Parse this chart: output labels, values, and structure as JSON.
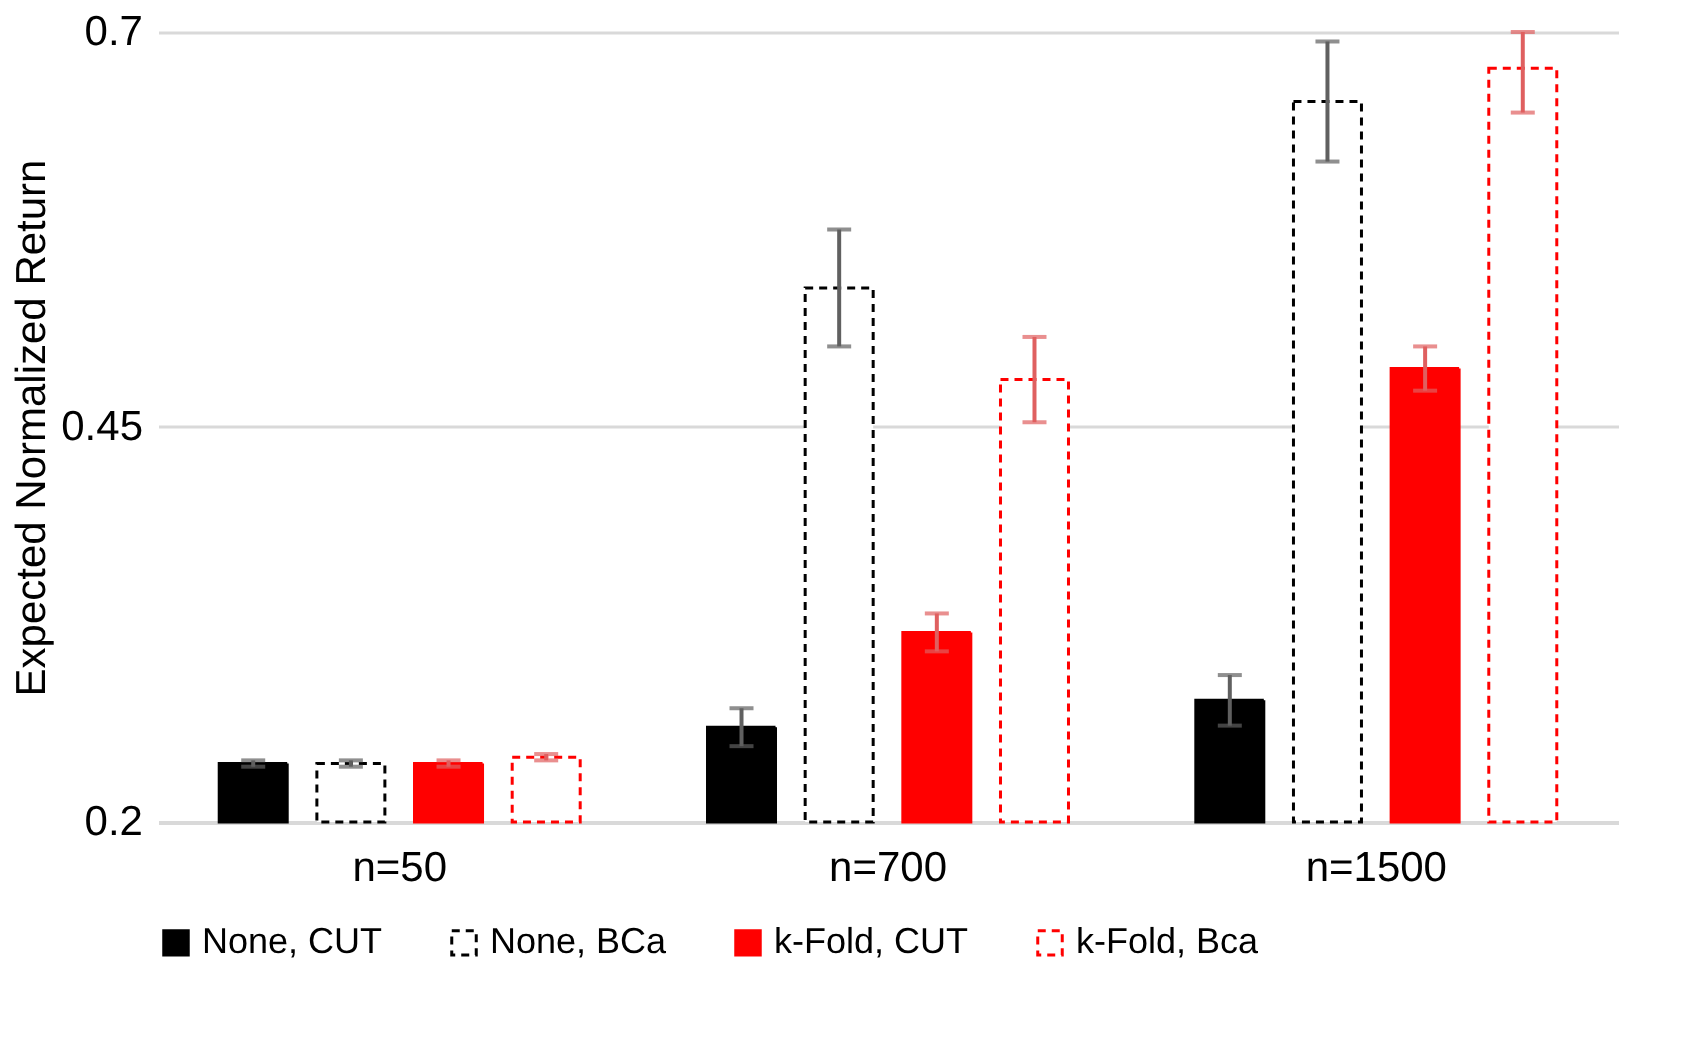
{
  "chart_data": {
    "type": "bar",
    "ylabel": "Expected Normalized Return",
    "categories": [
      "n=50",
      "n=700",
      "n=1500"
    ],
    "series": [
      {
        "name": "None, CUT",
        "color": "#000000",
        "line_style": "solid",
        "values": [
          0.237,
          0.26,
          0.277
        ],
        "errors": [
          [
            0.235,
            0.239
          ],
          [
            0.248,
            0.272
          ],
          [
            0.261,
            0.293
          ]
        ]
      },
      {
        "name": "None, BCa",
        "color": "#000000",
        "line_style": "dashed",
        "values": [
          0.237,
          0.538,
          0.656
        ],
        "errors": [
          [
            0.235,
            0.239
          ],
          [
            0.501,
            0.575
          ],
          [
            0.618,
            0.694
          ]
        ]
      },
      {
        "name": "k-Fold, CUT",
        "color": "#ff0000",
        "line_style": "solid",
        "values": [
          0.237,
          0.32,
          0.487
        ],
        "errors": [
          [
            0.235,
            0.239
          ],
          [
            0.308,
            0.332
          ],
          [
            0.473,
            0.501
          ]
        ]
      },
      {
        "name": "k-Fold, Bca",
        "color": "#ff0000",
        "line_style": "dashed",
        "values": [
          0.241,
          0.48,
          0.677
        ],
        "errors": [
          [
            0.239,
            0.243
          ],
          [
            0.453,
            0.507
          ],
          [
            0.649,
            0.7
          ]
        ]
      }
    ],
    "ylim": [
      0.2,
      0.7
    ],
    "yticks": [
      0.2,
      0.45,
      0.7
    ],
    "grid": "y",
    "legend": "bottom"
  }
}
